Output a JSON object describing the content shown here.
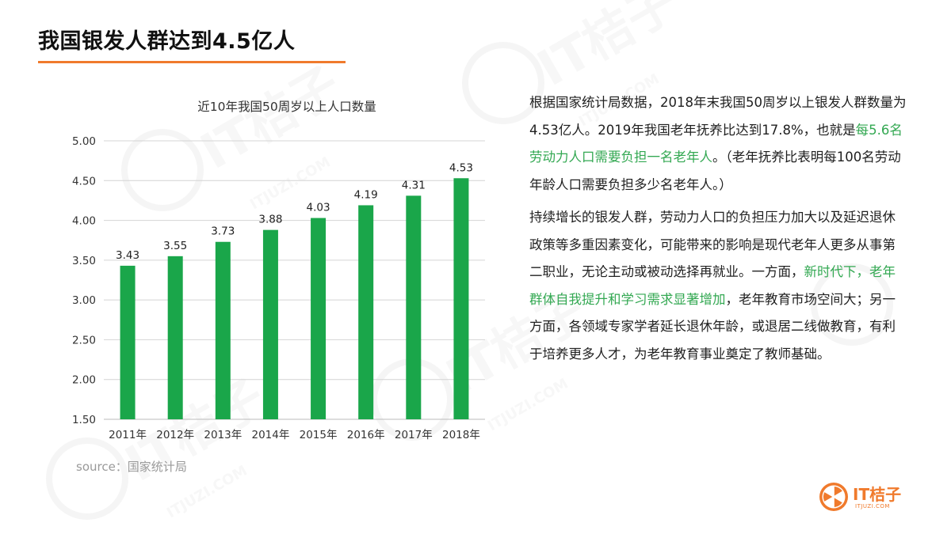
{
  "slide": {
    "title": "我国银发人群达到4.5亿人",
    "source": "source：国家统计局",
    "accent_color": "#f07a2c",
    "highlight_color": "#33a852"
  },
  "chart_data": {
    "type": "bar",
    "title": "近10年我国50周岁以上人口数量",
    "categories": [
      "2011年",
      "2012年",
      "2013年",
      "2014年",
      "2015年",
      "2016年",
      "2017年",
      "2018年"
    ],
    "values": [
      3.43,
      3.55,
      3.73,
      3.88,
      4.03,
      4.19,
      4.31,
      4.53
    ],
    "value_labels": [
      "3.43",
      "3.55",
      "3.73",
      "3.88",
      "4.03",
      "4.19",
      "4.31",
      "4.53"
    ],
    "ylim": [
      1.5,
      5.0
    ],
    "y_ticks": [
      "5.00",
      "4.50",
      "4.00",
      "3.50",
      "3.00",
      "2.50",
      "2.00",
      "1.50"
    ],
    "xlabel": "",
    "ylabel": "",
    "grid": true,
    "bar_color": "#1aa64a"
  },
  "body": {
    "para1": [
      {
        "text": "根据国家统计局数据，2018年末我国50周岁以上银发人群数量为4.53亿人。2019年我国老年抚养比达到17.8%，也就是",
        "hl": false
      },
      {
        "text": "每5.6名劳动力人口需要负担一名老年人",
        "hl": true
      },
      {
        "text": "。（老年抚养比表明每100名劳动年龄人口需要负担多少名老年人。）",
        "hl": false
      }
    ],
    "para2": [
      {
        "text": "持续增长的银发人群，劳动力人口的负担压力加大以及延迟退休政策等多重因素变化，可能带来的影响是现代老年人更多从事第二职业，无论主动或被动选择再就业。一方面，",
        "hl": false
      },
      {
        "text": "新时代下，老年群体自我提升和学习需求显著增加",
        "hl": true
      },
      {
        "text": "，老年教育市场空间大；另一方面，各领域专家学者延长退休年龄，或退居二线做教育，有利于培养更多人才，为老年教育事业奠定了教师基础。",
        "hl": false
      }
    ]
  },
  "watermark": {
    "text": "IT桔子",
    "domain": "ITJUZI.COM"
  },
  "logo": {
    "name": "IT桔子",
    "domain": "ITJUZI.COM",
    "icon": "orange-slice-icon"
  }
}
